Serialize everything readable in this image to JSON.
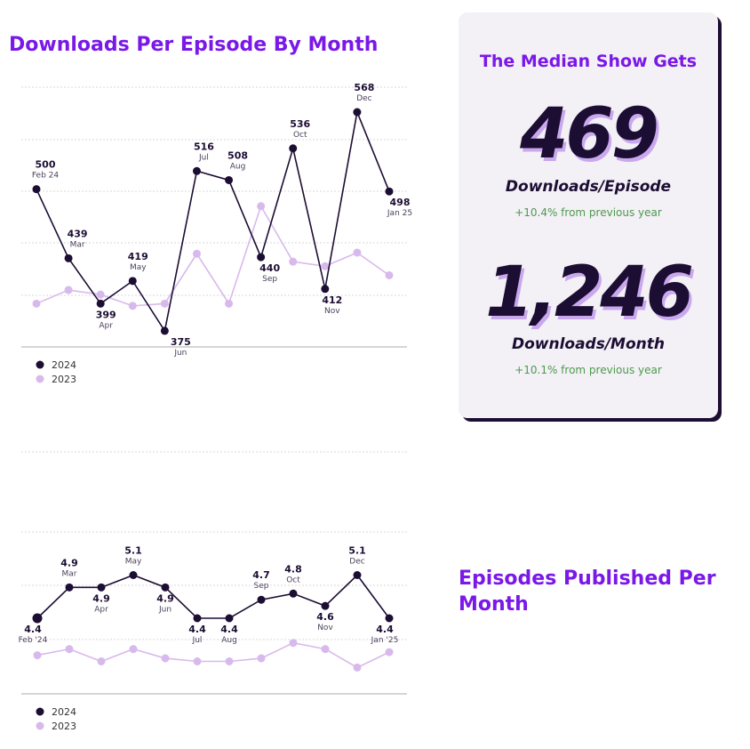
{
  "downloads_chart": {
    "title": "Downloads Per Episode By Month",
    "legend": [
      "2024",
      "2023"
    ],
    "colors": {
      "2024": "#1c0d33",
      "2023": "#d8b9ec"
    },
    "chart_data": {
      "type": "line",
      "x": [
        "Feb 24",
        "Mar",
        "Apr",
        "May",
        "Jun",
        "Jul",
        "Aug",
        "Sep",
        "Oct",
        "Nov",
        "Dec",
        "Jan 25"
      ],
      "series": [
        {
          "name": "2024",
          "values": [
            500,
            439,
            399,
            419,
            375,
            516,
            508,
            440,
            536,
            412,
            568,
            498
          ]
        },
        {
          "name": "2023",
          "values": [
            399,
            411,
            407,
            397,
            399,
            443,
            399,
            485,
            436,
            432,
            444,
            424
          ]
        }
      ],
      "ylim": [
        360,
        590
      ],
      "grid": true,
      "legend_position": "bottom-left"
    }
  },
  "median_card": {
    "title": "The Median Show Gets",
    "stats": [
      {
        "value": "469",
        "label": "Downloads/Episode",
        "change": "+10.4% from previous year"
      },
      {
        "value": "1,246",
        "label": "Downloads/Month",
        "change": "+10.1% from previous year"
      }
    ]
  },
  "episodes_chart": {
    "title": "Episodes Published Per Month",
    "legend": [
      "2024",
      "2023"
    ],
    "chart_data": {
      "type": "line",
      "x": [
        "Feb '24",
        "Mar",
        "Apr",
        "May",
        "Jun",
        "Jul",
        "Aug",
        "Sep",
        "Oct",
        "Nov",
        "Dec",
        "Jan '25"
      ],
      "series": [
        {
          "name": "2024",
          "values": [
            4.4,
            4.9,
            4.9,
            5.1,
            4.9,
            4.4,
            4.4,
            4.7,
            4.8,
            4.6,
            5.1,
            4.4
          ]
        },
        {
          "name": "2023",
          "values": [
            3.8,
            3.9,
            3.7,
            3.9,
            3.75,
            3.7,
            3.7,
            3.75,
            4.0,
            3.9,
            3.6,
            3.85
          ]
        }
      ],
      "ylim": [
        3.0,
        5.8
      ],
      "grid": true,
      "legend_position": "bottom-left"
    }
  }
}
